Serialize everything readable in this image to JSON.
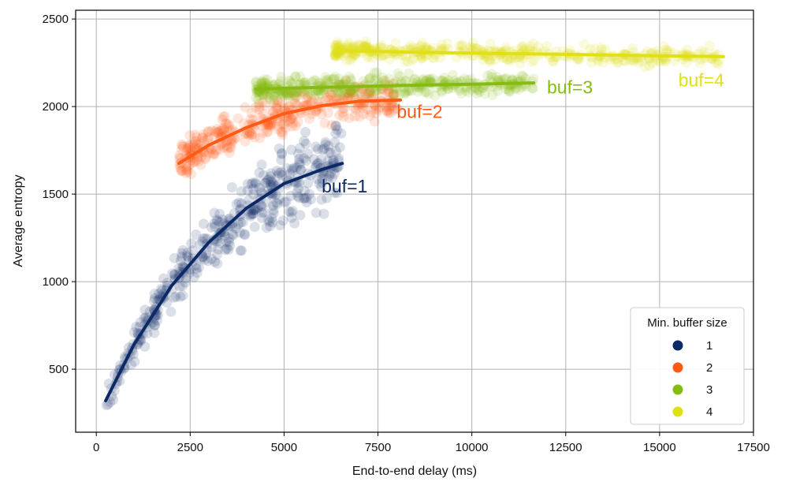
{
  "chart_data": {
    "type": "scatter",
    "title": "",
    "xlabel": "End-to-end delay (ms)",
    "ylabel": "Average entropy",
    "xlim": [
      -550,
      17500
    ],
    "ylim": [
      140,
      2550
    ],
    "xticks": [
      0,
      2500,
      5000,
      7500,
      10000,
      12500,
      15000,
      17500
    ],
    "yticks": [
      500,
      1000,
      1500,
      2000,
      2500
    ],
    "grid": true,
    "legend": {
      "title": "Min. buffer size",
      "placement": "bottom-right",
      "entries": [
        "1",
        "2",
        "3",
        "4"
      ]
    },
    "series": [
      {
        "name": "1",
        "color": "#0b2a66",
        "curve_label": "buf=1",
        "label_at": [
          6000,
          1510
        ],
        "x_range": [
          250,
          6550
        ],
        "point_count": 420,
        "trend_line": [
          [
            250,
            320
          ],
          [
            1000,
            640
          ],
          [
            2000,
            975
          ],
          [
            3000,
            1225
          ],
          [
            4000,
            1420
          ],
          [
            5000,
            1560
          ],
          [
            6000,
            1640
          ],
          [
            6550,
            1675
          ]
        ]
      },
      {
        "name": "2",
        "color": "#ff5a14",
        "curve_label": "buf=2",
        "label_at": [
          8000,
          1935
        ],
        "x_range": [
          2200,
          8100
        ],
        "point_count": 380,
        "trend_line": [
          [
            2200,
            1675
          ],
          [
            3000,
            1780
          ],
          [
            4000,
            1880
          ],
          [
            5000,
            1960
          ],
          [
            6000,
            2005
          ],
          [
            7000,
            2030
          ],
          [
            8100,
            2038
          ]
        ]
      },
      {
        "name": "3",
        "color": "#86bc12",
        "curve_label": "buf=3",
        "label_at": [
          12000,
          2075
        ],
        "x_range": [
          4250,
          11650
        ],
        "point_count": 380,
        "trend_line": [
          [
            4250,
            2100
          ],
          [
            6000,
            2110
          ],
          [
            8000,
            2120
          ],
          [
            10000,
            2128
          ],
          [
            11650,
            2135
          ]
        ]
      },
      {
        "name": "4",
        "color": "#e0e015",
        "curve_label": "buf=4",
        "label_at": [
          15500,
          2115
        ],
        "x_range": [
          6350,
          16700
        ],
        "point_count": 400,
        "trend_line": [
          [
            6350,
            2320
          ],
          [
            8000,
            2312
          ],
          [
            10000,
            2305
          ],
          [
            12500,
            2298
          ],
          [
            15000,
            2290
          ],
          [
            16700,
            2285
          ]
        ]
      }
    ]
  }
}
